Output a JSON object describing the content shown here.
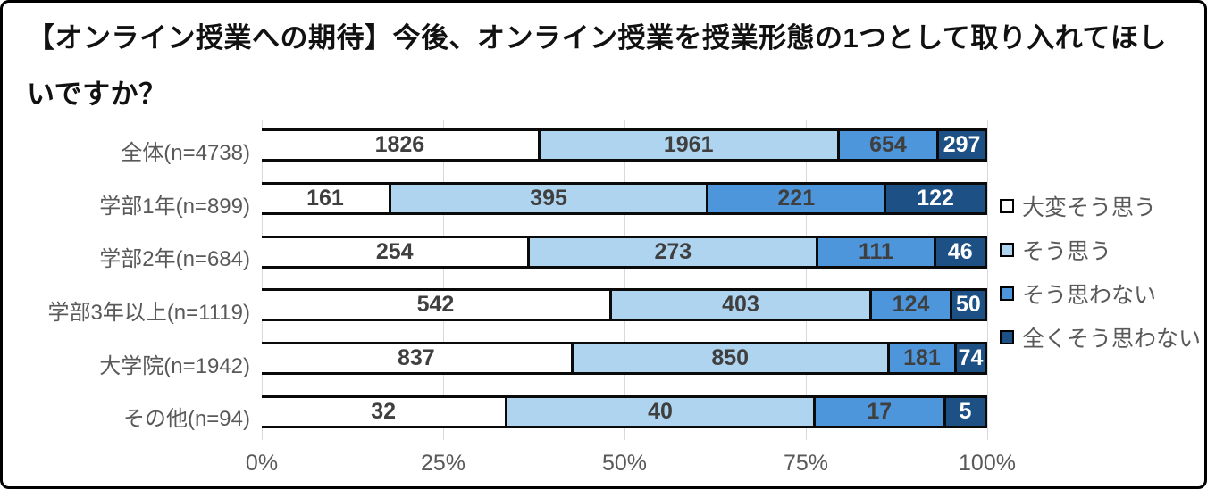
{
  "title": "【オンライン授業への期待】今後、オンライン授業を授業形態の1つとして取り入れてほしいですか？",
  "colors": {
    "series": [
      "#FFFFFF",
      "#AFD4F0",
      "#4E96DB",
      "#1D5186"
    ],
    "bar_border": "#0A0A0A",
    "gridline": "#D9D9D9",
    "label_dark": "#3F3F3F",
    "label_light": "#FFFFFF",
    "axis_text": "#595959"
  },
  "chart_data": {
    "type": "bar",
    "variant": "horizontal-100%-stacked",
    "title": "【オンライン授業への期待】今後、オンライン授業を授業形態の1つとして取り入れてほしいですか？",
    "categories": [
      "全体(n=4738)",
      "学部1年(n=899)",
      "学部2年(n=684)",
      "学部3年以上(n=1119)",
      "大学院(n=1942)",
      "その他(n=94)"
    ],
    "series": [
      {
        "name": "大変そう思う",
        "color": "#FFFFFF",
        "values": [
          1826,
          161,
          254,
          542,
          837,
          32
        ]
      },
      {
        "name": "そう思う",
        "color": "#AFD4F0",
        "values": [
          1961,
          395,
          273,
          403,
          850,
          40
        ]
      },
      {
        "name": "そう思わない",
        "color": "#4E96DB",
        "values": [
          654,
          221,
          111,
          124,
          181,
          17
        ]
      },
      {
        "name": "全くそう思わない",
        "color": "#1D5186",
        "values": [
          297,
          122,
          46,
          50,
          74,
          5
        ]
      }
    ],
    "row_totals": [
      4738,
      899,
      684,
      1119,
      1942,
      94
    ],
    "xlabel": "",
    "ylabel": "",
    "x_axis": {
      "min": 0,
      "max": 100,
      "tick_labels": [
        "0%",
        "25%",
        "50%",
        "75%",
        "100%"
      ],
      "tick_values": [
        0,
        25,
        50,
        75,
        100
      ]
    },
    "gridlines": "vertical",
    "legend_position": "right",
    "data_labels": "values-inside-segments"
  }
}
